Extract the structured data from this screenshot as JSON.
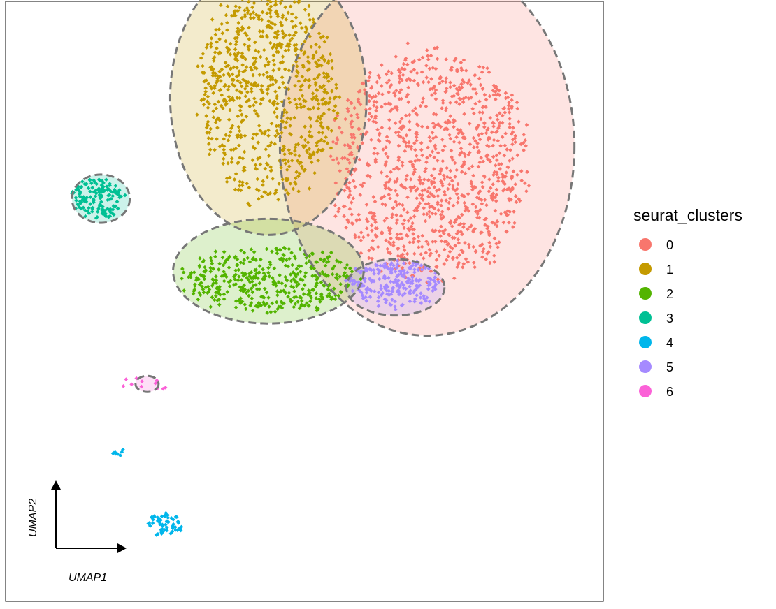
{
  "chart_data": {
    "type": "scatter",
    "title": "",
    "xlabel": "UMAP1",
    "ylabel": "UMAP2",
    "legend": {
      "title": "seurat_clusters",
      "position": "right"
    },
    "series": [
      {
        "name": "0",
        "color": "#F8766D",
        "ellipse": {
          "cx": 0.73,
          "cy": 0.61,
          "rx": 0.51,
          "ry": 0.47
        },
        "cloud": {
          "cx": 0.74,
          "cy": 0.56,
          "rx": 0.34,
          "ry": 0.28
        },
        "n_points": 1100
      },
      {
        "name": "1",
        "color": "#C49A00",
        "ellipse": {
          "cx": 0.18,
          "cy": 0.73,
          "rx": 0.34,
          "ry": 0.34
        },
        "cloud": {
          "cx": 0.18,
          "cy": 0.74,
          "rx": 0.24,
          "ry": 0.26
        },
        "n_points": 800
      },
      {
        "name": "2",
        "color": "#53B400",
        "ellipse": {
          "cx": 0.18,
          "cy": 0.3,
          "rx": 0.33,
          "ry": 0.13
        },
        "cloud": {
          "cx": 0.18,
          "cy": 0.28,
          "rx": 0.3,
          "ry": 0.08
        },
        "n_points": 420
      },
      {
        "name": "3",
        "color": "#00C094",
        "ellipse": {
          "cx": -0.4,
          "cy": 0.48,
          "rx": 0.1,
          "ry": 0.06
        },
        "cloud": {
          "cx": -0.41,
          "cy": 0.48,
          "rx": 0.09,
          "ry": 0.05
        },
        "n_points": 150
      },
      {
        "name": "4",
        "color": "#00B6EB",
        "cloud_small": {
          "cx": -0.34,
          "cy": -0.15,
          "rx": 0.02,
          "ry": 0.015
        },
        "cloud": {
          "cx": -0.18,
          "cy": -0.33,
          "rx": 0.06,
          "ry": 0.03
        },
        "n_points": 60
      },
      {
        "name": "5",
        "color": "#A58AFF",
        "ellipse": {
          "cx": 0.62,
          "cy": 0.26,
          "rx": 0.17,
          "ry": 0.07
        },
        "cloud": {
          "cx": 0.62,
          "cy": 0.27,
          "rx": 0.16,
          "ry": 0.06
        },
        "n_points": 220
      },
      {
        "name": "6",
        "color": "#FB61D7",
        "ellipse": {
          "cx": -0.24,
          "cy": 0.02,
          "rx": 0.04,
          "ry": 0.02
        },
        "cloud": {
          "cx": -0.24,
          "cy": 0.02,
          "rx": 0.1,
          "ry": 0.015
        },
        "n_points": 12
      }
    ],
    "xlim": [
      -0.73,
      1.34
    ],
    "ylim": [
      -0.52,
      0.97
    ],
    "grid": false,
    "panel_border": true
  }
}
